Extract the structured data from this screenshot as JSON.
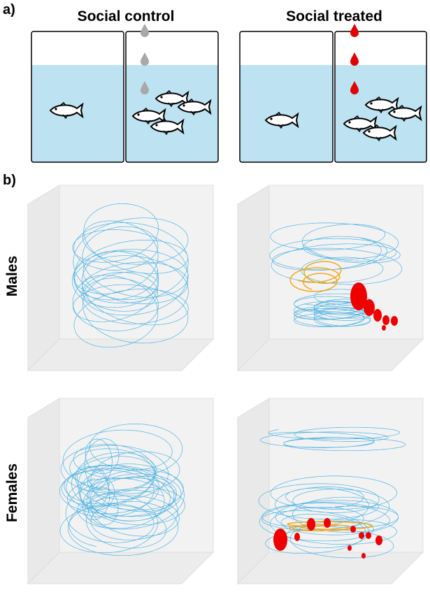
{
  "panel_a": {
    "label": "a)",
    "left_title": "Social control",
    "right_title": "Social treated"
  },
  "panel_b": {
    "label": "b)",
    "row_top": "Males",
    "row_bottom": "Females"
  }
}
